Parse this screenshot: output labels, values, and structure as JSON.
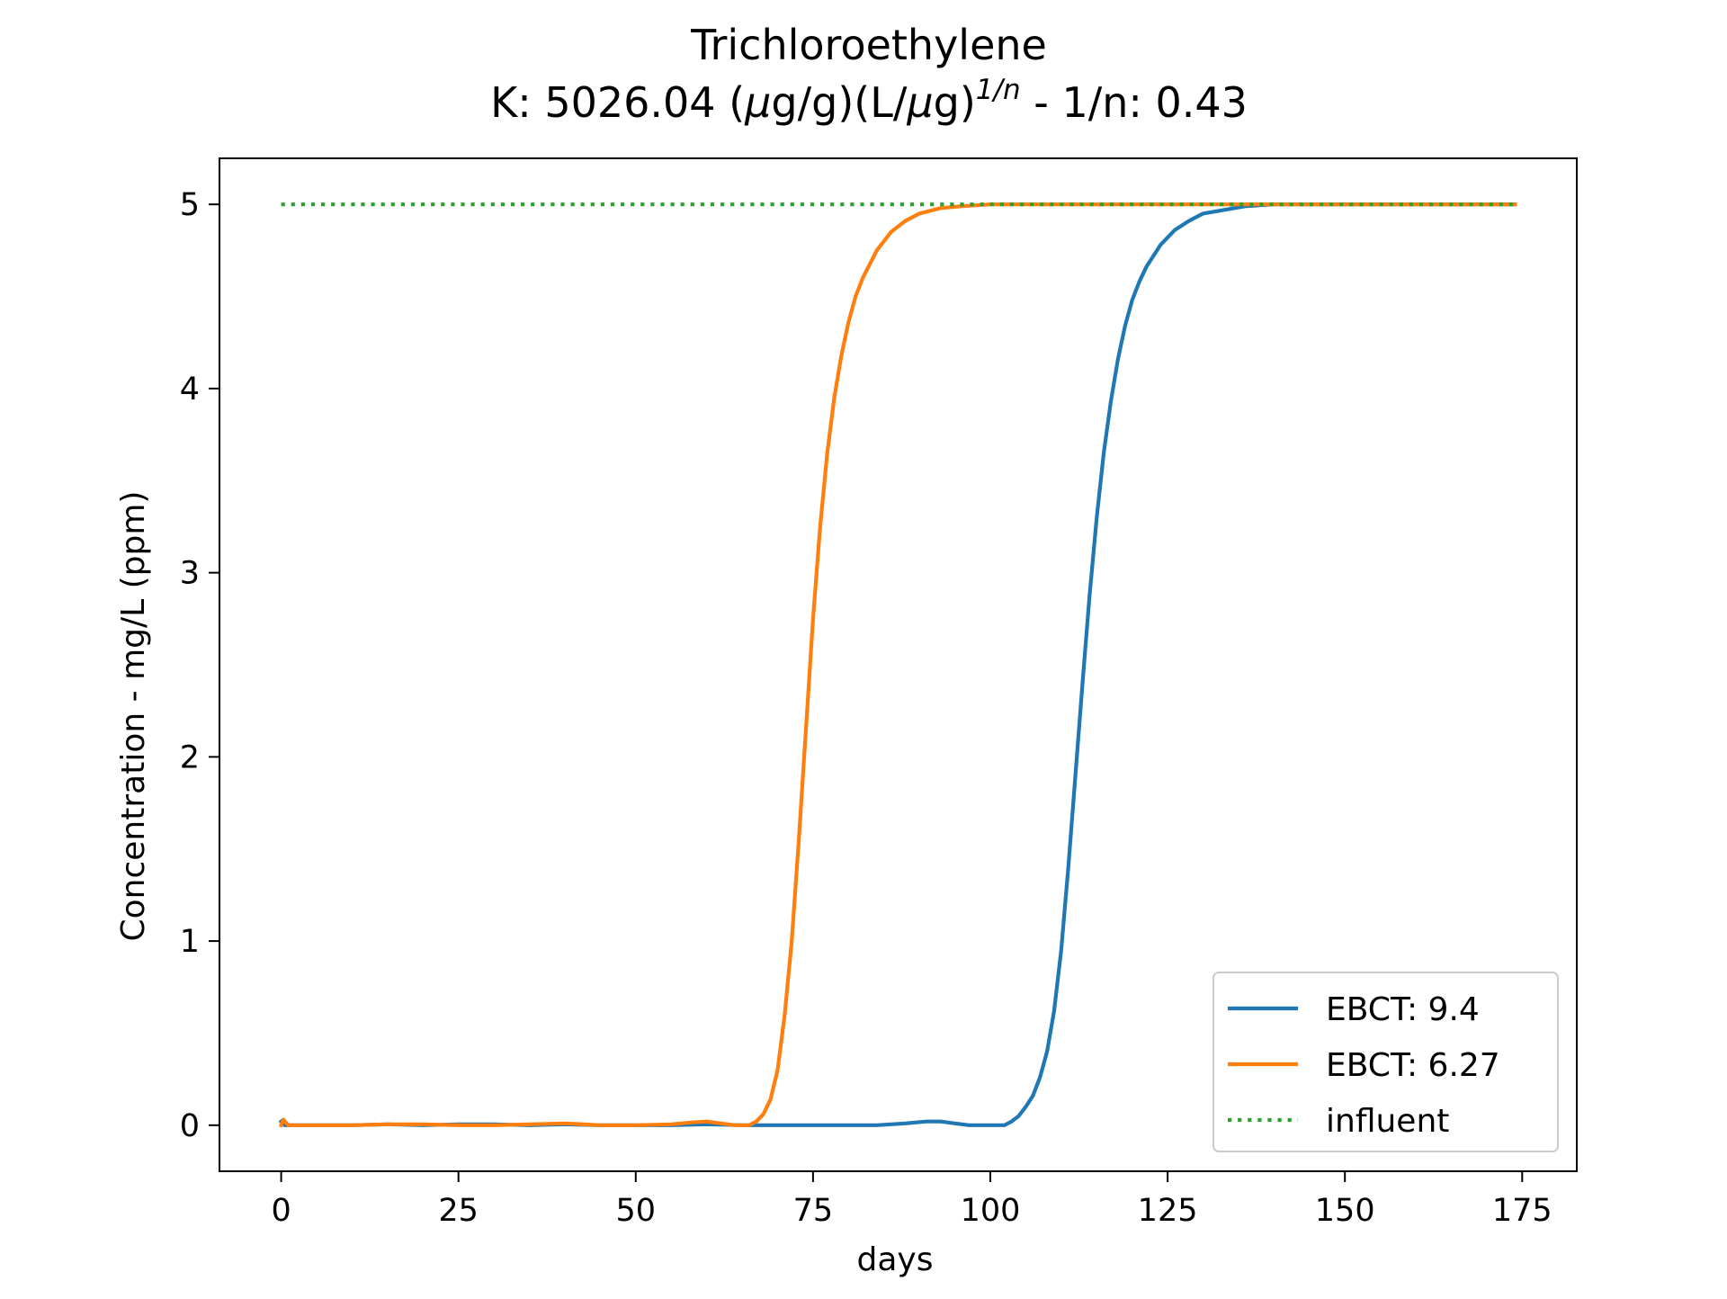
{
  "chart_data": {
    "type": "line",
    "title": "Trichloroethylene",
    "subtitle": {
      "prefix": "K: 5026.04 (",
      "mu1": "μ",
      "part2": "g/g)(L/",
      "mu2": "μ",
      "part3": "g)",
      "superscript": "1/n",
      "suffix": " - 1/n: 0.43"
    },
    "xlabel": "days",
    "ylabel": "Concentration - mg/L (ppm)",
    "xlim": [
      -8.7,
      182.7
    ],
    "ylim": [
      -0.25,
      5.25
    ],
    "xticks": [
      0,
      25,
      50,
      75,
      100,
      125,
      150,
      175
    ],
    "yticks": [
      0,
      1,
      2,
      3,
      4,
      5
    ],
    "grid": false,
    "legend_position": "lower right",
    "series": [
      {
        "name": "EBCT: 9.4",
        "color": "#1f77b4",
        "style": "solid",
        "points": [
          [
            0,
            0.02
          ],
          [
            0.5,
            0
          ],
          [
            5,
            0
          ],
          [
            10,
            0
          ],
          [
            15,
            0.005
          ],
          [
            20,
            0
          ],
          [
            25,
            0.005
          ],
          [
            30,
            0.005
          ],
          [
            35,
            0
          ],
          [
            40,
            0.005
          ],
          [
            45,
            0
          ],
          [
            50,
            0
          ],
          [
            55,
            0
          ],
          [
            60,
            0.005
          ],
          [
            65,
            0
          ],
          [
            70,
            0
          ],
          [
            75,
            0
          ],
          [
            80,
            0
          ],
          [
            84,
            0
          ],
          [
            88,
            0.01
          ],
          [
            91,
            0.02
          ],
          [
            93,
            0.02
          ],
          [
            95,
            0.01
          ],
          [
            97,
            0
          ],
          [
            100,
            0
          ],
          [
            102,
            0
          ],
          [
            103,
            0.02
          ],
          [
            104,
            0.05
          ],
          [
            105,
            0.1
          ],
          [
            106,
            0.16
          ],
          [
            107,
            0.26
          ],
          [
            108,
            0.4
          ],
          [
            109,
            0.62
          ],
          [
            110,
            0.95
          ],
          [
            111,
            1.4
          ],
          [
            112,
            1.9
          ],
          [
            113,
            2.4
          ],
          [
            114,
            2.88
          ],
          [
            115,
            3.3
          ],
          [
            116,
            3.65
          ],
          [
            117,
            3.93
          ],
          [
            118,
            4.16
          ],
          [
            119,
            4.34
          ],
          [
            120,
            4.48
          ],
          [
            121,
            4.58
          ],
          [
            122,
            4.66
          ],
          [
            124,
            4.78
          ],
          [
            126,
            4.86
          ],
          [
            128,
            4.91
          ],
          [
            130,
            4.95
          ],
          [
            133,
            4.97
          ],
          [
            136,
            4.99
          ],
          [
            140,
            5.0
          ],
          [
            150,
            5.0
          ],
          [
            160,
            5.0
          ],
          [
            174,
            5.0
          ]
        ]
      },
      {
        "name": "EBCT: 6.27",
        "color": "#ff7f0e",
        "style": "solid",
        "points": [
          [
            0,
            0
          ],
          [
            0.3,
            0.03
          ],
          [
            1,
            0
          ],
          [
            5,
            0
          ],
          [
            10,
            0
          ],
          [
            15,
            0.005
          ],
          [
            20,
            0.005
          ],
          [
            25,
            0
          ],
          [
            30,
            0
          ],
          [
            35,
            0.005
          ],
          [
            40,
            0.01
          ],
          [
            45,
            0
          ],
          [
            50,
            0
          ],
          [
            55,
            0.005
          ],
          [
            58,
            0.015
          ],
          [
            60,
            0.02
          ],
          [
            62,
            0.01
          ],
          [
            64,
            0
          ],
          [
            66,
            0
          ],
          [
            67,
            0.02
          ],
          [
            68,
            0.06
          ],
          [
            69,
            0.14
          ],
          [
            70,
            0.3
          ],
          [
            71,
            0.6
          ],
          [
            72,
            1.0
          ],
          [
            73,
            1.55
          ],
          [
            74,
            2.15
          ],
          [
            75,
            2.75
          ],
          [
            76,
            3.25
          ],
          [
            77,
            3.65
          ],
          [
            78,
            3.95
          ],
          [
            79,
            4.18
          ],
          [
            80,
            4.36
          ],
          [
            81,
            4.5
          ],
          [
            82,
            4.6
          ],
          [
            84,
            4.75
          ],
          [
            86,
            4.85
          ],
          [
            88,
            4.91
          ],
          [
            90,
            4.95
          ],
          [
            93,
            4.98
          ],
          [
            96,
            4.99
          ],
          [
            100,
            5.0
          ],
          [
            110,
            5.0
          ],
          [
            130,
            5.0
          ],
          [
            150,
            5.0
          ],
          [
            174,
            5.0
          ]
        ]
      },
      {
        "name": "influent",
        "color": "#2ca02c",
        "style": "dotted",
        "points": [
          [
            0,
            5.0
          ],
          [
            174,
            5.0
          ]
        ]
      }
    ]
  }
}
